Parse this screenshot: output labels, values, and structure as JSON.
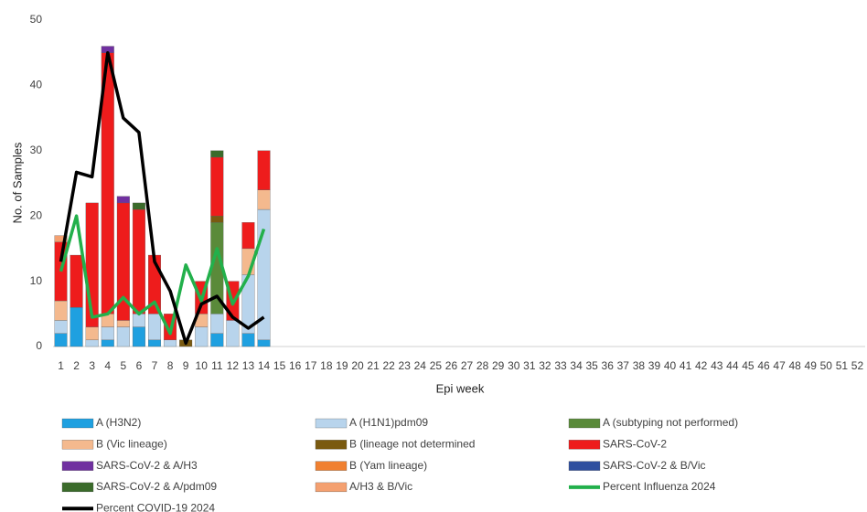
{
  "chart_data": {
    "type": "bar",
    "stacked": true,
    "y_label": "No. of Samples",
    "x_label": "Epi week",
    "categories": [
      1,
      2,
      3,
      4,
      5,
      6,
      7,
      8,
      9,
      10,
      11,
      12,
      13,
      14,
      15,
      16,
      17,
      18,
      19,
      20,
      21,
      22,
      23,
      24,
      25,
      26,
      27,
      28,
      29,
      30,
      31,
      32,
      33,
      34,
      35,
      36,
      37,
      38,
      39,
      40,
      41,
      42,
      43,
      44,
      45,
      46,
      47,
      48,
      49,
      50,
      51,
      52
    ],
    "ylim": [
      0,
      50
    ],
    "yticks": [
      0,
      10,
      20,
      30,
      40,
      50
    ],
    "grid": false,
    "legend": "bottom",
    "series": [
      {
        "name": "A (H3N2)",
        "color": "#1fa0e0",
        "values": [
          2,
          6,
          0,
          1,
          0,
          3,
          1,
          0,
          0,
          0,
          2,
          0,
          2,
          1,
          null,
          null,
          null,
          null,
          null,
          null,
          null,
          null,
          null,
          null,
          null,
          null,
          null,
          null,
          null,
          null,
          null,
          null,
          null,
          null,
          null,
          null,
          null,
          null,
          null,
          null,
          null,
          null,
          null,
          null,
          null,
          null,
          null,
          null,
          null,
          null,
          null,
          null
        ]
      },
      {
        "name": "A (H1N1)pdm09",
        "color": "#b8d4ec",
        "values": [
          2,
          0,
          1,
          2,
          3,
          2,
          4,
          1,
          0,
          3,
          3,
          4,
          9,
          20,
          null,
          null,
          null,
          null,
          null,
          null,
          null,
          null,
          null,
          null,
          null,
          null,
          null,
          null,
          null,
          null,
          null,
          null,
          null,
          null,
          null,
          null,
          null,
          null,
          null,
          null,
          null,
          null,
          null,
          null,
          null,
          null,
          null,
          null,
          null,
          null,
          null,
          null
        ]
      },
      {
        "name": "A (subtyping not performed)",
        "color": "#5a8a3a",
        "values": [
          0,
          0,
          0,
          0,
          0,
          0,
          0,
          0,
          0,
          0,
          14,
          0,
          0,
          0,
          null,
          null,
          null,
          null,
          null,
          null,
          null,
          null,
          null,
          null,
          null,
          null,
          null,
          null,
          null,
          null,
          null,
          null,
          null,
          null,
          null,
          null,
          null,
          null,
          null,
          null,
          null,
          null,
          null,
          null,
          null,
          null,
          null,
          null,
          null,
          null,
          null,
          null
        ]
      },
      {
        "name": "B (Vic lineage)",
        "color": "#f4b98e",
        "values": [
          3,
          0,
          2,
          2,
          1,
          0,
          0,
          0,
          0,
          2,
          0,
          0,
          4,
          3,
          null,
          null,
          null,
          null,
          null,
          null,
          null,
          null,
          null,
          null,
          null,
          null,
          null,
          null,
          null,
          null,
          null,
          null,
          null,
          null,
          null,
          null,
          null,
          null,
          null,
          null,
          null,
          null,
          null,
          null,
          null,
          null,
          null,
          null,
          null,
          null,
          null,
          null
        ]
      },
      {
        "name": "B (lineage not determined",
        "color": "#7a5a10",
        "values": [
          0,
          0,
          0,
          0,
          0,
          0,
          0,
          0,
          1,
          0,
          1,
          0,
          0,
          0,
          null,
          null,
          null,
          null,
          null,
          null,
          null,
          null,
          null,
          null,
          null,
          null,
          null,
          null,
          null,
          null,
          null,
          null,
          null,
          null,
          null,
          null,
          null,
          null,
          null,
          null,
          null,
          null,
          null,
          null,
          null,
          null,
          null,
          null,
          null,
          null,
          null,
          null
        ]
      },
      {
        "name": "SARS-CoV-2",
        "color": "#ee1c1c",
        "values": [
          9,
          8,
          19,
          40,
          18,
          16,
          9,
          4,
          0,
          5,
          9,
          6,
          4,
          6,
          null,
          null,
          null,
          null,
          null,
          null,
          null,
          null,
          null,
          null,
          null,
          null,
          null,
          null,
          null,
          null,
          null,
          null,
          null,
          null,
          null,
          null,
          null,
          null,
          null,
          null,
          null,
          null,
          null,
          null,
          null,
          null,
          null,
          null,
          null,
          null,
          null,
          null
        ]
      },
      {
        "name": "SARS-CoV-2 & A/H3",
        "color": "#7030a0",
        "values": [
          0,
          0,
          0,
          1,
          1,
          0,
          0,
          0,
          0,
          0,
          0,
          0,
          0,
          0,
          null,
          null,
          null,
          null,
          null,
          null,
          null,
          null,
          null,
          null,
          null,
          null,
          null,
          null,
          null,
          null,
          null,
          null,
          null,
          null,
          null,
          null,
          null,
          null,
          null,
          null,
          null,
          null,
          null,
          null,
          null,
          null,
          null,
          null,
          null,
          null,
          null,
          null
        ]
      },
      {
        "name": "B (Yam lineage)",
        "color": "#f08030",
        "values": [
          0,
          0,
          0,
          0,
          0,
          0,
          0,
          0,
          0,
          0,
          0,
          0,
          0,
          0,
          null,
          null,
          null,
          null,
          null,
          null,
          null,
          null,
          null,
          null,
          null,
          null,
          null,
          null,
          null,
          null,
          null,
          null,
          null,
          null,
          null,
          null,
          null,
          null,
          null,
          null,
          null,
          null,
          null,
          null,
          null,
          null,
          null,
          null,
          null,
          null,
          null,
          null
        ]
      },
      {
        "name": "SARS-CoV-2 & B/Vic",
        "color": "#2f4f9f",
        "values": [
          0,
          0,
          0,
          0,
          0,
          0,
          0,
          0,
          0,
          0,
          0,
          0,
          0,
          0,
          null,
          null,
          null,
          null,
          null,
          null,
          null,
          null,
          null,
          null,
          null,
          null,
          null,
          null,
          null,
          null,
          null,
          null,
          null,
          null,
          null,
          null,
          null,
          null,
          null,
          null,
          null,
          null,
          null,
          null,
          null,
          null,
          null,
          null,
          null,
          null,
          null,
          null
        ]
      },
      {
        "name": "SARS-CoV-2 & A/pdm09",
        "color": "#3b6b2b",
        "values": [
          0,
          0,
          0,
          0,
          0,
          1,
          0,
          0,
          0,
          0,
          1,
          0,
          0,
          0,
          null,
          null,
          null,
          null,
          null,
          null,
          null,
          null,
          null,
          null,
          null,
          null,
          null,
          null,
          null,
          null,
          null,
          null,
          null,
          null,
          null,
          null,
          null,
          null,
          null,
          null,
          null,
          null,
          null,
          null,
          null,
          null,
          null,
          null,
          null,
          null,
          null,
          null
        ]
      },
      {
        "name": "A/H3 & B/Vic",
        "color": "#f4a070",
        "values": [
          1,
          0,
          0,
          0,
          0,
          0,
          0,
          0,
          0,
          0,
          0,
          0,
          0,
          0,
          null,
          null,
          null,
          null,
          null,
          null,
          null,
          null,
          null,
          null,
          null,
          null,
          null,
          null,
          null,
          null,
          null,
          null,
          null,
          null,
          null,
          null,
          null,
          null,
          null,
          null,
          null,
          null,
          null,
          null,
          null,
          null,
          null,
          null,
          null,
          null,
          null,
          null
        ]
      },
      {
        "name": "Percent Influenza 2024",
        "color": "#22b04b",
        "type": "line",
        "values": [
          11.5,
          20,
          4.5,
          5,
          7.5,
          5,
          6.8,
          2,
          12.5,
          7,
          15,
          6.5,
          10.8,
          18,
          null,
          null,
          null,
          null,
          null,
          null,
          null,
          null,
          null,
          null,
          null,
          null,
          null,
          null,
          null,
          null,
          null,
          null,
          null,
          null,
          null,
          null,
          null,
          null,
          null,
          null,
          null,
          null,
          null,
          null,
          null,
          null,
          null,
          null,
          null,
          null,
          null,
          null
        ]
      },
      {
        "name": "Percent COVID-19 2024",
        "color": "#000000",
        "type": "line",
        "values": [
          13,
          26.7,
          26,
          45,
          35,
          32.8,
          13,
          8.5,
          0.5,
          6.5,
          7.7,
          4.5,
          2.8,
          4.5,
          null,
          null,
          null,
          null,
          null,
          null,
          null,
          null,
          null,
          null,
          null,
          null,
          null,
          null,
          null,
          null,
          null,
          null,
          null,
          null,
          null,
          null,
          null,
          null,
          null,
          null,
          null,
          null,
          null,
          null,
          null,
          null,
          null,
          null,
          null,
          null,
          null,
          null
        ]
      }
    ]
  }
}
